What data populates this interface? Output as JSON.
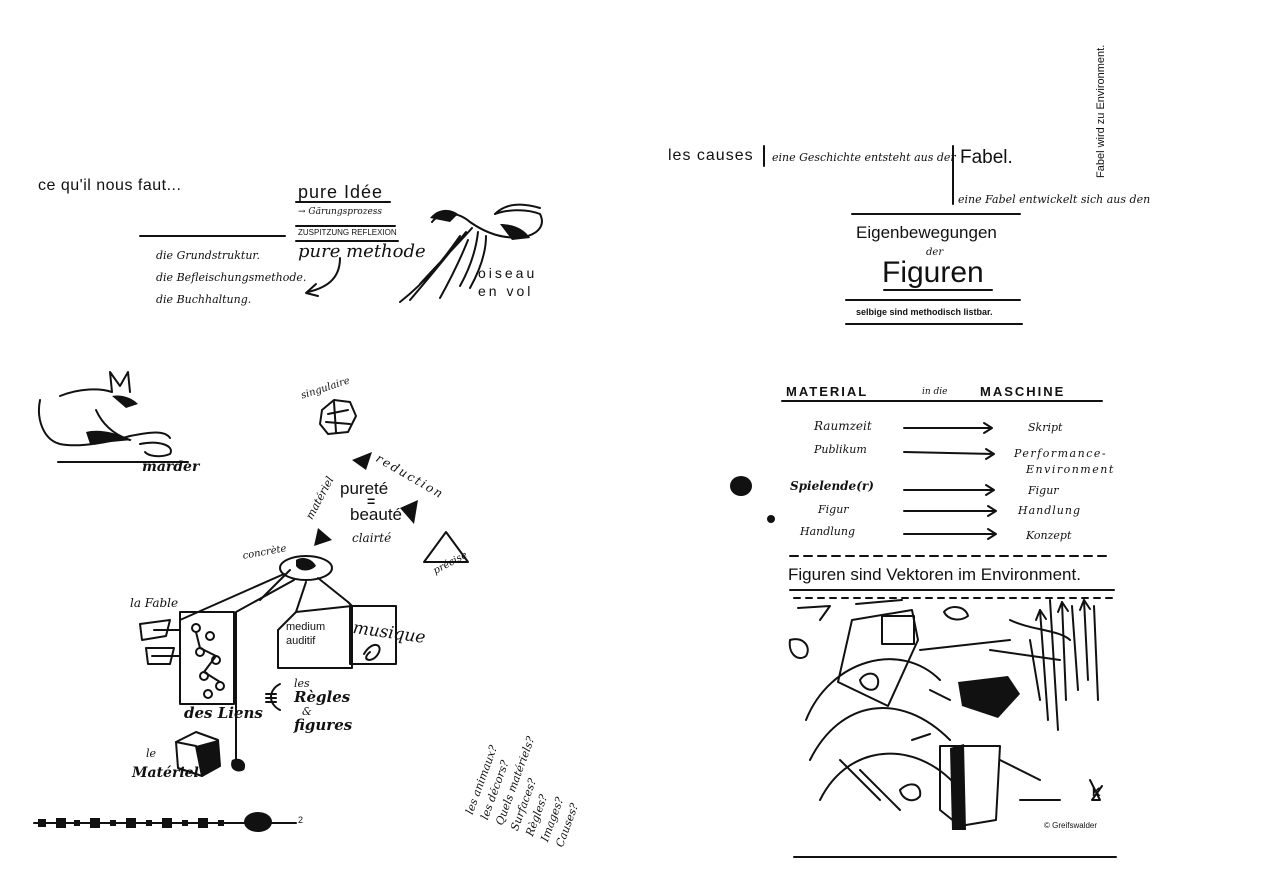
{
  "left": {
    "intro": "ce qu'il nous faut...",
    "list": [
      "die Grundstruktur.",
      "die Befleischungsmethode.",
      "die Buchhaltung."
    ],
    "pure_idee": "pure Idée",
    "process_lines": [
      "→ Gärungsprozess",
      "zuspitzung reflexion"
    ],
    "pure_methode": "pure methode",
    "bird_label": [
      "oiseau",
      "en vol"
    ],
    "marder": "marder",
    "singulaire": "singulaire",
    "reduction": "reduction",
    "materiel_word": "matériel",
    "purete": [
      "pureté",
      "=",
      "beauté"
    ],
    "clairete": "clairté",
    "precise": "précise",
    "concrete": "concrète",
    "la_fable": "la Fable",
    "medium": [
      "medium",
      "auditif"
    ],
    "musique": "musique",
    "liens": "des Liens",
    "regles": [
      "les",
      "Règles",
      "&",
      "figures"
    ],
    "le_materiel": [
      "le",
      "Matériel"
    ],
    "questions": [
      "les animaux?",
      "les décors?",
      "Quels matériels?",
      "Surfaces?",
      "Règles?",
      "Images?",
      "Causes?"
    ],
    "border_mark": "2"
  },
  "right": {
    "les_causes": "les causes",
    "geschichte": "eine Geschichte entsteht aus der",
    "fabel": "Fabel.",
    "fabel_entwickelt": "eine Fabel entwickelt sich aus den",
    "vertical": "Fabel wird zu Environment.",
    "eigen": "Eigenbewegungen",
    "der": "der",
    "figuren": "Figuren",
    "selbige": "selbige sind methodisch listbar.",
    "material": "MATERIAL",
    "in_die": "in die",
    "maschine": "MASCHINE",
    "mapping_left": [
      "Raumzeit",
      "Publikum",
      "Spielende(r)",
      "Figur",
      "Handlung"
    ],
    "mapping_right": [
      "Skript",
      "Performance-",
      "Environment",
      "Figur",
      "Handlung",
      "Konzept"
    ],
    "vektoren": "Figuren sind Vektoren im Environment.",
    "copyright": "© Greifswalder",
    "signature": "K"
  }
}
